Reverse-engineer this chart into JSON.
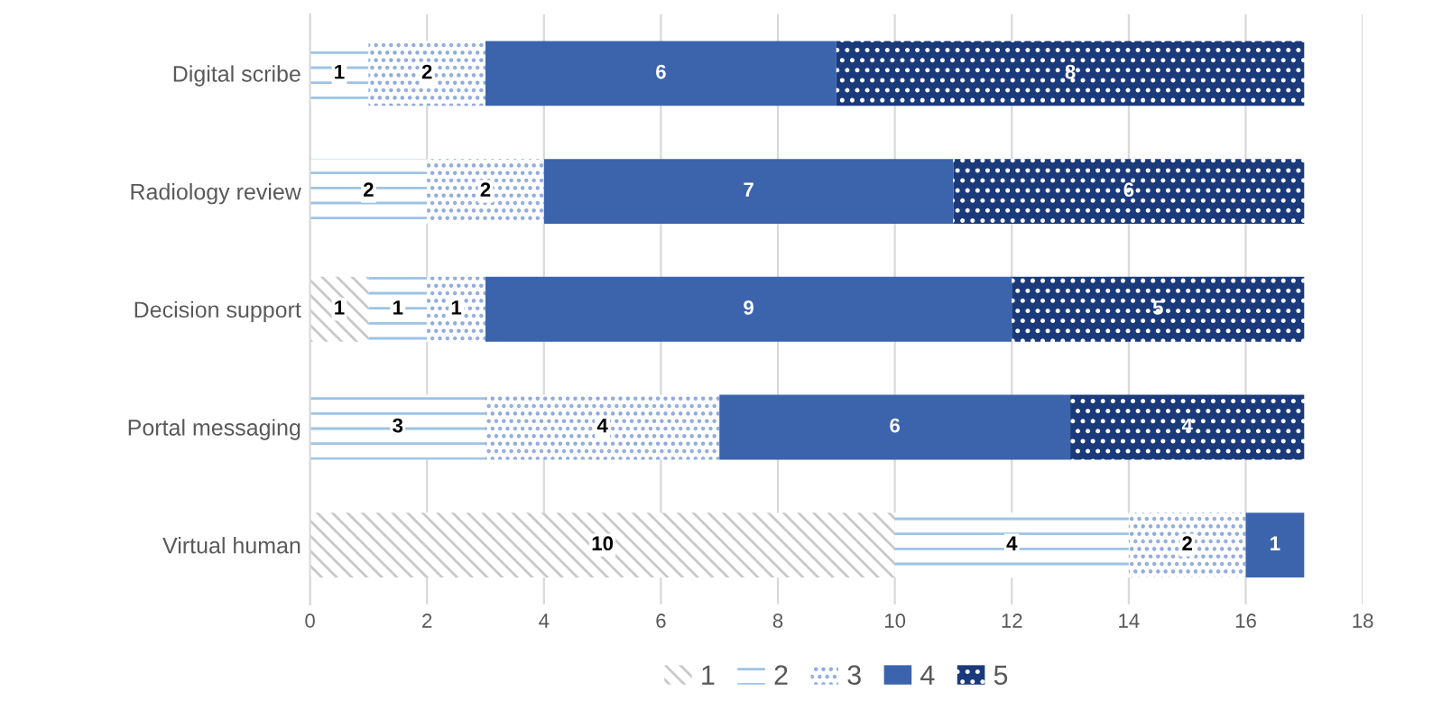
{
  "chart_data": {
    "type": "bar",
    "orientation": "horizontal",
    "stacked": true,
    "data_labels": true,
    "legend": "bottom",
    "grid": "x",
    "categories": [
      "Digital scribe",
      "Radiology review",
      "Decision support",
      "Portal messaging",
      "Virtual human"
    ],
    "series": [
      {
        "name": "1",
        "color": "#c9c9c9",
        "values": [
          null,
          null,
          1,
          null,
          10
        ]
      },
      {
        "name": "2",
        "color": "#9dc3e6",
        "values": [
          1,
          2,
          1,
          3,
          4
        ]
      },
      {
        "name": "3",
        "color": "#8faadc",
        "values": [
          2,
          2,
          1,
          4,
          2
        ]
      },
      {
        "name": "4",
        "color": "#3b64ad",
        "values": [
          6,
          7,
          9,
          6,
          1
        ]
      },
      {
        "name": "5",
        "color": "#1a3a7c",
        "values": [
          8,
          6,
          5,
          4,
          null
        ]
      }
    ],
    "xlim": [
      0,
      18
    ],
    "xticks": [
      0,
      2,
      4,
      6,
      8,
      10,
      12,
      14,
      16,
      18
    ]
  }
}
